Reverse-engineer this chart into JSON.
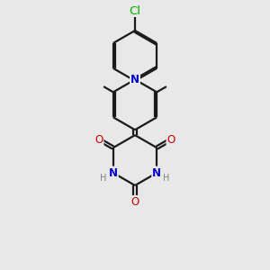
{
  "bg_color": "#e8e8e8",
  "bond_color": "#1a1a1a",
  "N_color": "#0000cc",
  "O_color": "#cc0000",
  "Cl_color": "#00aa00",
  "H_color": "#808080",
  "line_width": 1.6,
  "font_size": 8.5,
  "figsize": [
    3.0,
    3.0
  ],
  "dpi": 100,
  "xlim": [
    0,
    10
  ],
  "ylim": [
    0,
    10
  ]
}
